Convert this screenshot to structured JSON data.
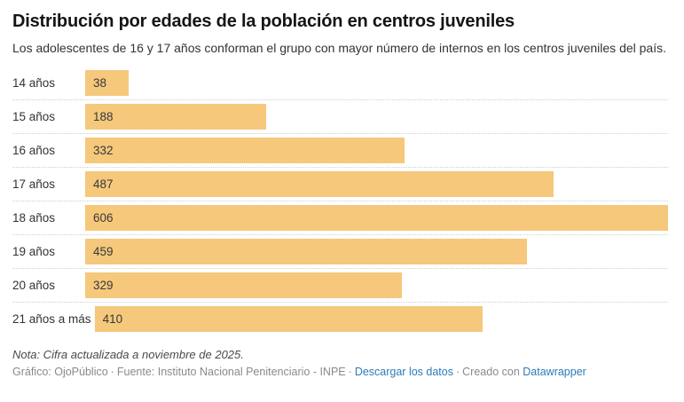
{
  "header": {
    "title": "Distribución por edades de la población en centros juveniles",
    "subtitle": "Los adolescentes de 16 y 17 años conforman el grupo con mayor número de internos en los centros juveniles del país."
  },
  "chart_data": {
    "type": "bar",
    "orientation": "horizontal",
    "title": "Distribución por edades de la población en centros juveniles",
    "subtitle": "Los adolescentes de 16 y 17 años conforman el grupo con mayor número de internos en los centros juveniles del país.",
    "categories": [
      "14 años",
      "15 años",
      "16 años",
      "17 años",
      "18 años",
      "19 años",
      "20 años",
      "21 años a más"
    ],
    "values": [
      38,
      188,
      332,
      487,
      606,
      459,
      329,
      410
    ],
    "max_value": 606,
    "xlabel": "",
    "ylabel": "",
    "grid": "off",
    "value_labels": "inside-bar-start",
    "bar_color": "#f5c87c",
    "separator_style": "dotted"
  },
  "footer": {
    "note": "Nota: Cifra actualizada a noviembre de 2025.",
    "graphic_credit": "Gráfico: OjoPúblico",
    "source_credit": "Fuente: Instituto Nacional Penitenciario - INPE",
    "download_label": "Descargar los datos",
    "created_with": "Creado con",
    "datawrapper_label": "Datawrapper",
    "separator": "·",
    "link_color": "#2b7bba"
  }
}
